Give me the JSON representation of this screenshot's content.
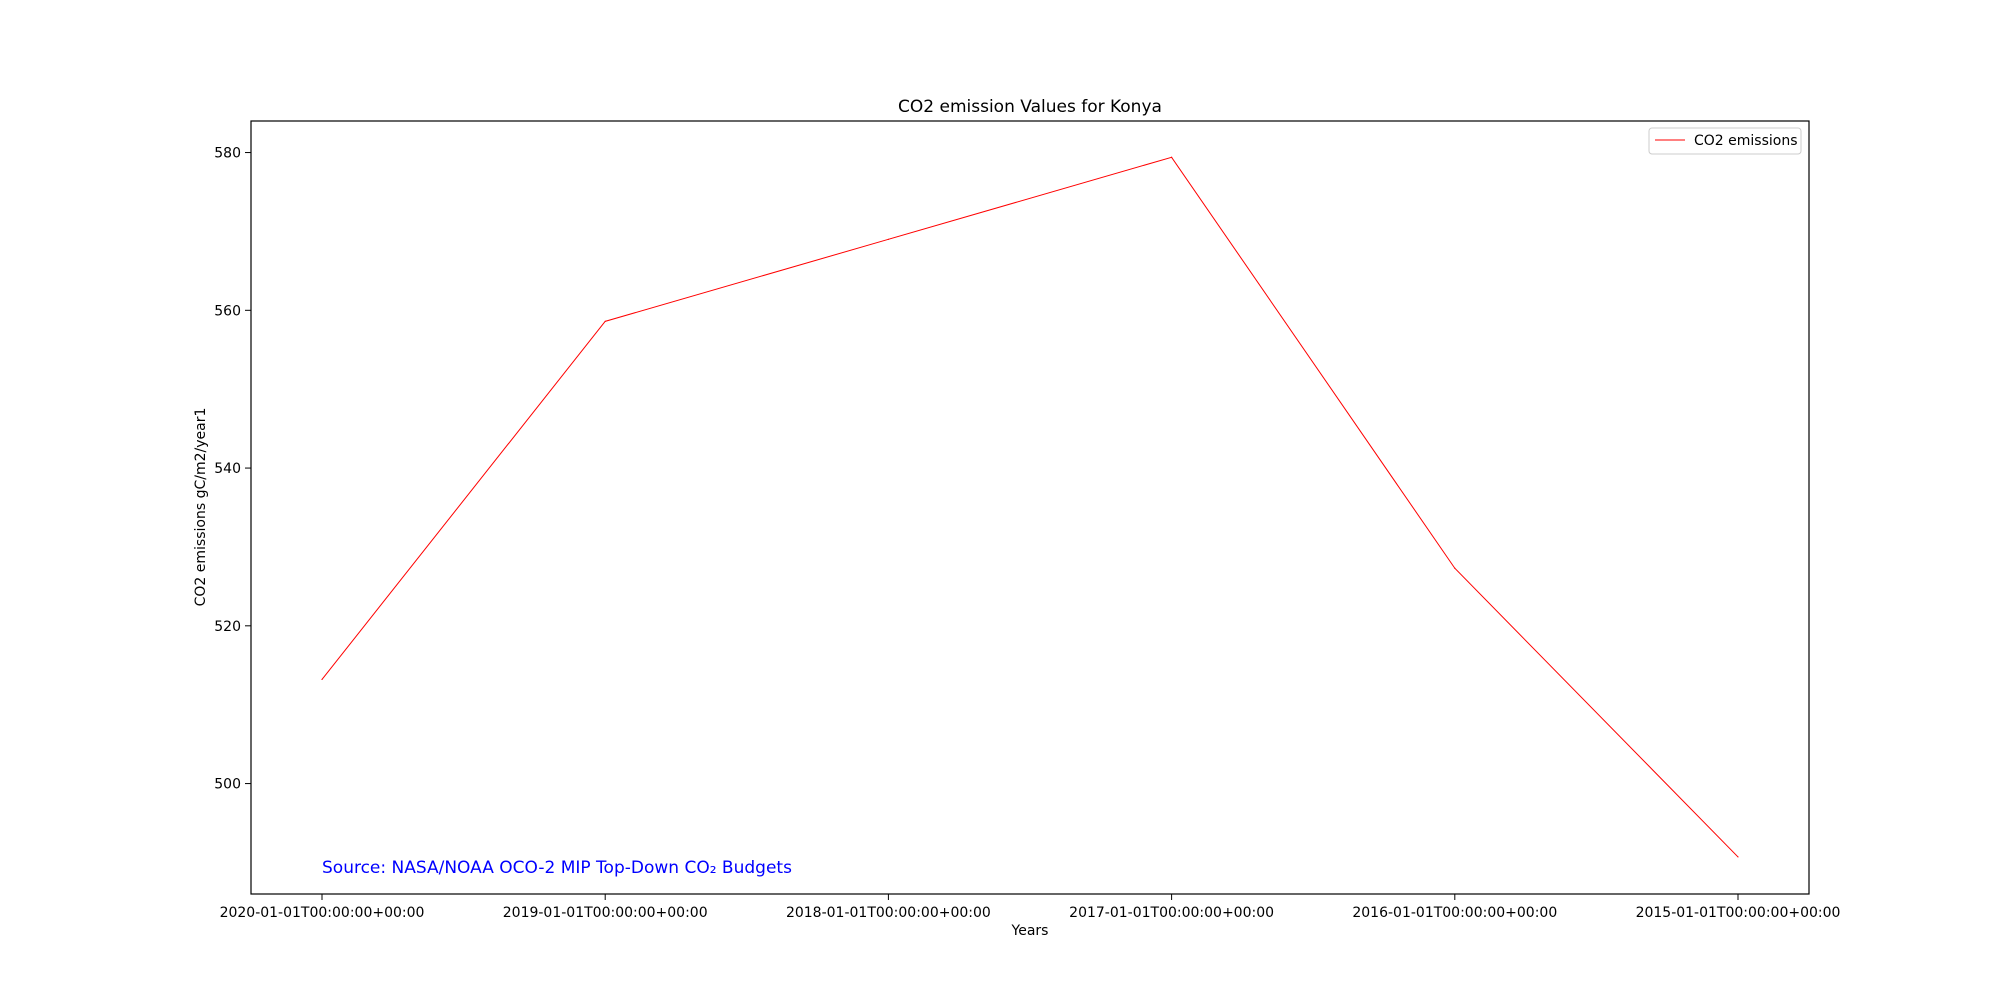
{
  "chart_data": {
    "type": "line",
    "title": "CO2 emission Values for Konya",
    "xlabel": "Years",
    "ylabel": "CO2 emissions gC/m2/year1",
    "categories": [
      "2020-01-01T00:00:00+00:00",
      "2019-01-01T00:00:00+00:00",
      "2018-01-01T00:00:00+00:00",
      "2017-01-01T00:00:00+00:00",
      "2016-01-01T00:00:00+00:00",
      "2015-01-01T00:00:00+00:00"
    ],
    "series": [
      {
        "name": "CO2 emissions",
        "values": [
          513.2,
          558.6,
          569.0,
          579.4,
          527.3,
          490.7
        ],
        "color": "#ff0000"
      }
    ],
    "yticks": [
      "500",
      "520",
      "540",
      "560",
      "580"
    ],
    "ylim": [
      486,
      584
    ],
    "grid": false,
    "legend": "top-right"
  },
  "annotation": {
    "text": "Source: NASA/NOAA OCO-2 MIP Top-Down CO₂ Budgets",
    "color": "#0000ff"
  }
}
